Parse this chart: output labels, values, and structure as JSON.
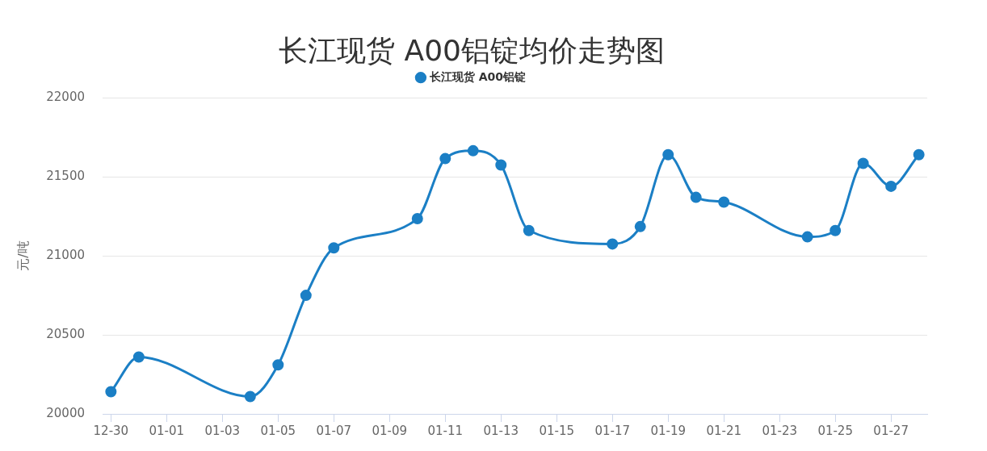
{
  "chart_data": {
    "type": "line",
    "title": "长江现货 A00铝锭均价走势图",
    "ylabel": "元/吨",
    "categories": [
      "12-30",
      null,
      "01-01",
      null,
      "01-03",
      null,
      "01-05",
      null,
      "01-07",
      null,
      "01-09",
      null,
      "01-11",
      null,
      "01-13",
      null,
      "01-15",
      null,
      "01-17",
      null,
      "01-19",
      null,
      "01-21",
      null,
      "01-23",
      null,
      "01-25",
      null,
      "01-27",
      null
    ],
    "series": [
      {
        "name": "长江现货 A00铝锭",
        "color": "#1b7fc5",
        "values": [
          20140,
          20360,
          null,
          null,
          null,
          20110,
          20310,
          20750,
          21050,
          null,
          null,
          21235,
          21615,
          21665,
          21575,
          21160,
          null,
          null,
          21075,
          21185,
          21640,
          21370,
          21340,
          null,
          null,
          21120,
          21160,
          21585,
          21440,
          21640
        ]
      }
    ],
    "ylim": [
      20000,
      22000
    ],
    "yticks": [
      20000,
      20500,
      21000,
      21500,
      22000
    ],
    "grid": "y",
    "legend": "top",
    "marker": "circle",
    "line_style": "solid"
  }
}
